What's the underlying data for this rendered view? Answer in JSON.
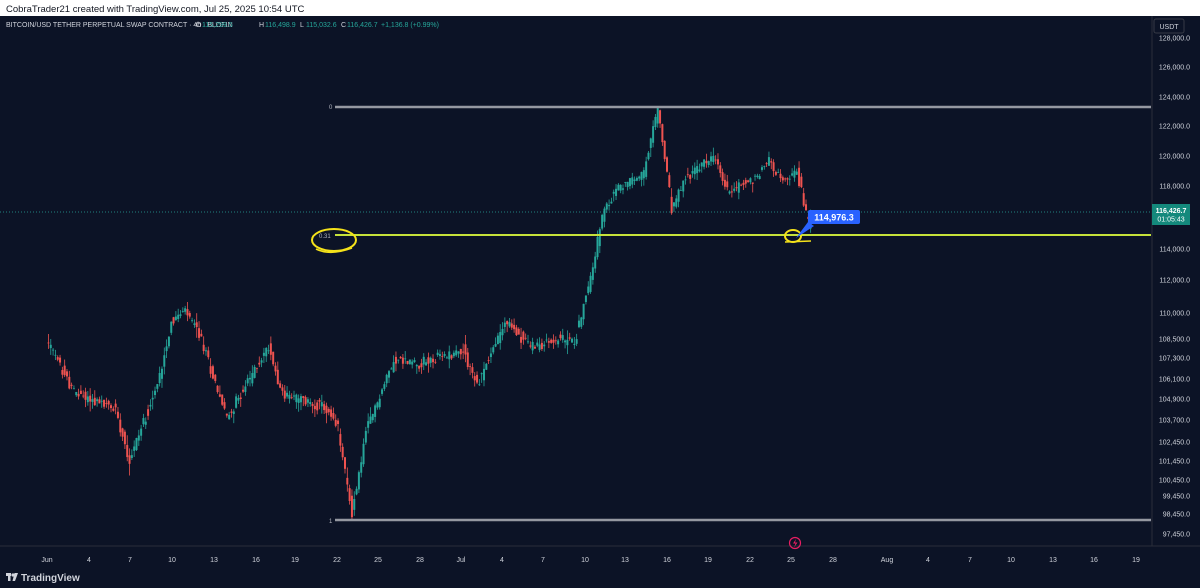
{
  "header": {
    "caption": "CobraTrader21 created with TradingView.com, Jul 25, 2025 10:54 UTC"
  },
  "legend": {
    "symbol": "BITCOIN/USD TETHER PERPETUAL SWAP CONTRACT · 4h · BLOFIN",
    "o_label": "O",
    "o_value": "115,299.5",
    "h_label": "H",
    "h_value": "116,498.9",
    "l_label": "L",
    "l_value": "115,032.6",
    "c_label": "C",
    "c_value": "116,426.7",
    "change": "+1,136.8 (+0.99%)"
  },
  "currency": "USDT",
  "price_tag": {
    "price": "116,426.7",
    "countdown": "01:05:43"
  },
  "callout": "114,976.3",
  "footer": {
    "brand": "TradingView"
  },
  "colors": {
    "background": "#0c1326",
    "up": "#26a69a",
    "down": "#ef5350",
    "level_line": "#c6e23a",
    "callout": "#2962ff",
    "gray_level": "#9598a1",
    "price_tag": "#14897c"
  },
  "chart_data": {
    "type": "candlestick",
    "timeframe": "4h",
    "y_axis_labels": [
      "128,000.0",
      "126,000.0",
      "124,000.0",
      "122,000.0",
      "120,000.0",
      "118,000.0",
      "114,000.0",
      "112,000.0",
      "110,000.0",
      "108,500.0",
      "107,300.0",
      "106,100.0",
      "104,900.0",
      "103,700.0",
      "102,450.0",
      "101,450.0",
      "100,450.0",
      "99,450.0",
      "98,450.0",
      "97,450.0"
    ],
    "x_axis_labels": [
      "Jun",
      "4",
      "7",
      "10",
      "13",
      "16",
      "19",
      "22",
      "25",
      "28",
      "Jul",
      "4",
      "7",
      "10",
      "13",
      "16",
      "19",
      "22",
      "25",
      "28",
      "Aug",
      "4",
      "7",
      "10",
      "13",
      "16",
      "19"
    ],
    "fib_levels": [
      {
        "label": "0",
        "price": 123200
      },
      {
        "label": "0.31",
        "price": 114976.3
      },
      {
        "label": "1",
        "price": 98400
      }
    ],
    "last_price": 116426.7,
    "anchor_points": [
      {
        "date": "May 31",
        "price": 108400
      },
      {
        "date": "Jun 2",
        "price": 105300
      },
      {
        "date": "Jun 5",
        "price": 104300
      },
      {
        "date": "Jun 6",
        "price": 101500
      },
      {
        "date": "Jun 8",
        "price": 105700
      },
      {
        "date": "Jun 9",
        "price": 109500
      },
      {
        "date": "Jun 10",
        "price": 110100
      },
      {
        "date": "Jun 11",
        "price": 108800
      },
      {
        "date": "Jun 13",
        "price": 103800
      },
      {
        "date": "Jun 16",
        "price": 108000
      },
      {
        "date": "Jun 17",
        "price": 105200
      },
      {
        "date": "Jun 20",
        "price": 104400
      },
      {
        "date": "Jun 21",
        "price": 103200
      },
      {
        "date": "Jun 22",
        "price": 98500
      },
      {
        "date": "Jun 23",
        "price": 103000
      },
      {
        "date": "Jun 25",
        "price": 107200
      },
      {
        "date": "Jun 27",
        "price": 107000
      },
      {
        "date": "Jun 30",
        "price": 107800
      },
      {
        "date": "Jul 1",
        "price": 105700
      },
      {
        "date": "Jul 3",
        "price": 109500
      },
      {
        "date": "Jul 5",
        "price": 108000
      },
      {
        "date": "Jul 7",
        "price": 108500
      },
      {
        "date": "Jul 8",
        "price": 108300
      },
      {
        "date": "Jul 9",
        "price": 111500
      },
      {
        "date": "Jul 10",
        "price": 116000
      },
      {
        "date": "Jul 11",
        "price": 117800
      },
      {
        "date": "Jul 13",
        "price": 118800
      },
      {
        "date": "Jul 14",
        "price": 123200
      },
      {
        "date": "Jul 15",
        "price": 116500
      },
      {
        "date": "Jul 16",
        "price": 118500
      },
      {
        "date": "Jul 18",
        "price": 120000
      },
      {
        "date": "Jul 19",
        "price": 117700
      },
      {
        "date": "Jul 21",
        "price": 118500
      },
      {
        "date": "Jul 22",
        "price": 119800
      },
      {
        "date": "Jul 23",
        "price": 118200
      },
      {
        "date": "Jul 24",
        "price": 119000
      },
      {
        "date": "Jul 25",
        "price": 115000
      }
    ]
  }
}
